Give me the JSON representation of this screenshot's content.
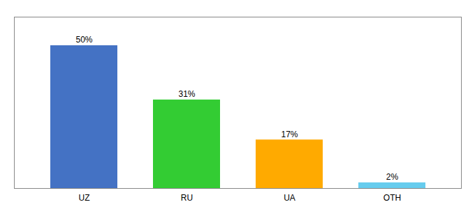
{
  "chart_data": {
    "type": "bar",
    "categories": [
      "UZ",
      "RU",
      "UA",
      "OTH"
    ],
    "values": [
      50,
      31,
      17,
      2
    ],
    "value_labels": [
      "50%",
      "31%",
      "17%",
      "2%"
    ],
    "colors": [
      "#4472c4",
      "#33cc33",
      "#ffaa00",
      "#66ccee"
    ],
    "ylim": [
      0,
      60
    ],
    "data_labels": true,
    "tick_labels": "x"
  }
}
